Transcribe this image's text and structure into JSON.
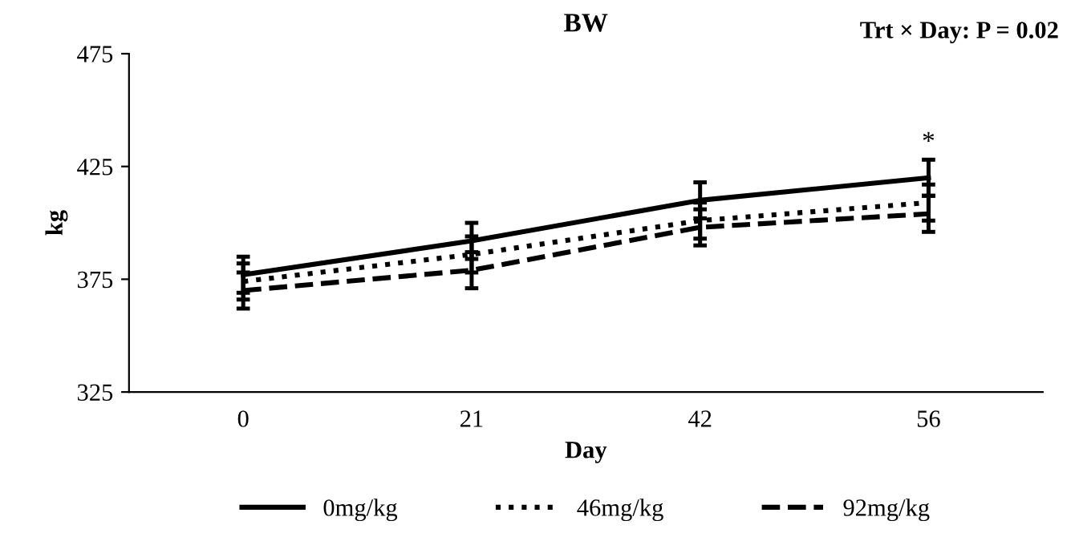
{
  "chart_data": {
    "type": "line",
    "title": "BW",
    "xlabel": "Day",
    "ylabel": "kg",
    "categories": [
      "0",
      "21",
      "42",
      "56"
    ],
    "series": [
      {
        "name": "0mg/kg",
        "color": "#000000",
        "line_style": "solid",
        "values": [
          377,
          392,
          410,
          420
        ],
        "errors": [
          8,
          8,
          8,
          8
        ]
      },
      {
        "name": "46mg/kg",
        "color": "#000000",
        "line_style": "dotted",
        "values": [
          374,
          386,
          401,
          409
        ],
        "errors": [
          8,
          8,
          8,
          8
        ]
      },
      {
        "name": "92mg/kg",
        "color": "#000000",
        "line_style": "dashed",
        "values": [
          370,
          379,
          398,
          404
        ],
        "errors": [
          8,
          8,
          8,
          8
        ]
      }
    ],
    "ylim": [
      325,
      475
    ],
    "yticks": [
      325,
      375,
      425,
      475
    ],
    "grid": false,
    "legend": "bottom",
    "marker": "none",
    "annotations": [
      "Trt × Day: P = 0.02",
      {
        "text": "*",
        "x": "56",
        "y": 430
      }
    ]
  }
}
